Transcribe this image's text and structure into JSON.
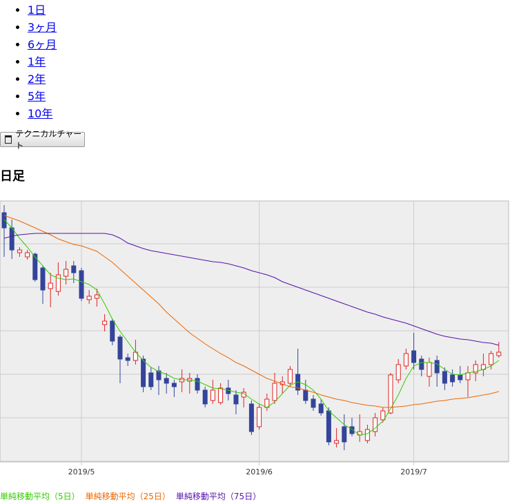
{
  "periods": [
    "1日",
    "3ヶ月",
    "6ヶ月",
    "1年",
    "2年",
    "5年",
    "10年"
  ],
  "button": "テクニカルチャート",
  "heading": "日足",
  "chart_data": {
    "type": "candlestick",
    "categories": [
      null,
      null,
      null,
      null,
      null,
      null,
      null,
      null,
      null,
      null,
      "2019/5",
      null,
      null,
      null,
      null,
      null,
      null,
      null,
      null,
      null,
      null,
      null,
      null,
      null,
      null,
      null,
      null,
      null,
      null,
      null,
      null,
      null,
      null,
      "2019/6",
      null,
      null,
      null,
      null,
      null,
      null,
      null,
      null,
      null,
      null,
      null,
      null,
      null,
      null,
      null,
      null,
      null,
      null,
      null,
      "2019/7",
      null,
      null,
      null,
      null,
      null,
      null,
      null,
      null,
      null,
      null,
      null
    ],
    "open": [
      360,
      338,
      302,
      296,
      300,
      280,
      250,
      246,
      268,
      283,
      276,
      234,
      236,
      198,
      203,
      180,
      150,
      146,
      148,
      128,
      131,
      120,
      113,
      115,
      116,
      120,
      103,
      88,
      85,
      106,
      96,
      93,
      83,
      50,
      78,
      88,
      111,
      113,
      126,
      103,
      90,
      83,
      73,
      26,
      50,
      50,
      38,
      30,
      43,
      60,
      70,
      118,
      138,
      160,
      148,
      123,
      146,
      130,
      125,
      125,
      118,
      128,
      133,
      140,
      153
    ],
    "high": [
      371,
      350,
      310,
      306,
      302,
      283,
      273,
      288,
      290,
      290,
      280,
      248,
      250,
      213,
      206,
      183,
      156,
      176,
      153,
      136,
      138,
      128,
      118,
      133,
      128,
      126,
      108,
      118,
      113,
      118,
      103,
      106,
      88,
      83,
      98,
      128,
      123,
      138,
      163,
      118,
      96,
      90,
      78,
      48,
      68,
      63,
      68,
      53,
      70,
      78,
      128,
      148,
      163,
      186,
      153,
      150,
      153,
      136,
      133,
      138,
      138,
      146,
      156,
      160,
      173
    ],
    "low": [
      296,
      293,
      296,
      292,
      260,
      228,
      223,
      240,
      256,
      258,
      232,
      228,
      224,
      188,
      168,
      113,
      138,
      140,
      100,
      103,
      96,
      98,
      93,
      100,
      98,
      98,
      78,
      83,
      82,
      88,
      68,
      78,
      38,
      46,
      73,
      83,
      98,
      108,
      96,
      83,
      73,
      66,
      23,
      20,
      16,
      36,
      28,
      26,
      36,
      56,
      68,
      113,
      133,
      133,
      123,
      108,
      108,
      103,
      108,
      113,
      93,
      116,
      123,
      133,
      150
    ],
    "close": [
      338,
      306,
      306,
      302,
      263,
      248,
      258,
      270,
      278,
      273,
      236,
      239,
      241,
      203,
      174,
      148,
      146,
      158,
      108,
      108,
      118,
      113,
      108,
      120,
      120,
      103,
      83,
      103,
      106,
      98,
      83,
      100,
      43,
      78,
      90,
      113,
      115,
      133,
      103,
      88,
      78,
      70,
      28,
      30,
      28,
      40,
      43,
      46,
      63,
      73,
      125,
      140,
      156,
      143,
      133,
      143,
      128,
      113,
      115,
      118,
      128,
      140,
      140,
      156,
      158
    ],
    "up_color": "#dd2222",
    "down_color": "#334499",
    "series": [
      {
        "name": "単純移動平均（5日）",
        "color": "#33cc00",
        "values": [
          350,
          338,
          323,
          310,
          296,
          283,
          270,
          265,
          263,
          264,
          260,
          256,
          248,
          228,
          206,
          188,
          173,
          158,
          146,
          136,
          130,
          126,
          120,
          118,
          118,
          116,
          111,
          106,
          105,
          103,
          100,
          98,
          90,
          83,
          78,
          86,
          98,
          110,
          115,
          111,
          103,
          90,
          73,
          63,
          53,
          46,
          38,
          40,
          48,
          58,
          76,
          96,
          120,
          138,
          143,
          143,
          141,
          133,
          126,
          125,
          128,
          130,
          133,
          138,
          146
        ]
      },
      {
        "name": "単純移動平均（25日）",
        "color": "#ee6600",
        "values": [
          356,
          352,
          348,
          343,
          338,
          333,
          328,
          322,
          318,
          314,
          312,
          308,
          304,
          296,
          288,
          278,
          268,
          258,
          248,
          238,
          228,
          216,
          206,
          196,
          186,
          178,
          170,
          163,
          156,
          150,
          143,
          138,
          132,
          126,
          120,
          116,
          112,
          108,
          106,
          103,
          100,
          96,
          93,
          90,
          88,
          85,
          83,
          81,
          80,
          78,
          78,
          79,
          80,
          82,
          83,
          85,
          87,
          88,
          90,
          91,
          92,
          94,
          96,
          98,
          101
        ]
      },
      {
        "name": "単純移動平均（75日）",
        "color": "#5511aa",
        "values": [
          323,
          326,
          328,
          329,
          330,
          330,
          330,
          330,
          330,
          330,
          330,
          330,
          330,
          330,
          328,
          323,
          316,
          312,
          308,
          305,
          303,
          301,
          299,
          297,
          295,
          293,
          291,
          289,
          288,
          286,
          283,
          280,
          276,
          273,
          270,
          266,
          260,
          256,
          252,
          248,
          244,
          240,
          236,
          232,
          228,
          224,
          220,
          216,
          213,
          209,
          206,
          203,
          200,
          196,
          192,
          188,
          184,
          181,
          179,
          177,
          176,
          174,
          172,
          171,
          168
        ]
      }
    ],
    "ylim": [
      0,
      376
    ],
    "yticks": [
      0,
      63,
      126,
      189,
      252,
      315
    ],
    "grid": true
  }
}
